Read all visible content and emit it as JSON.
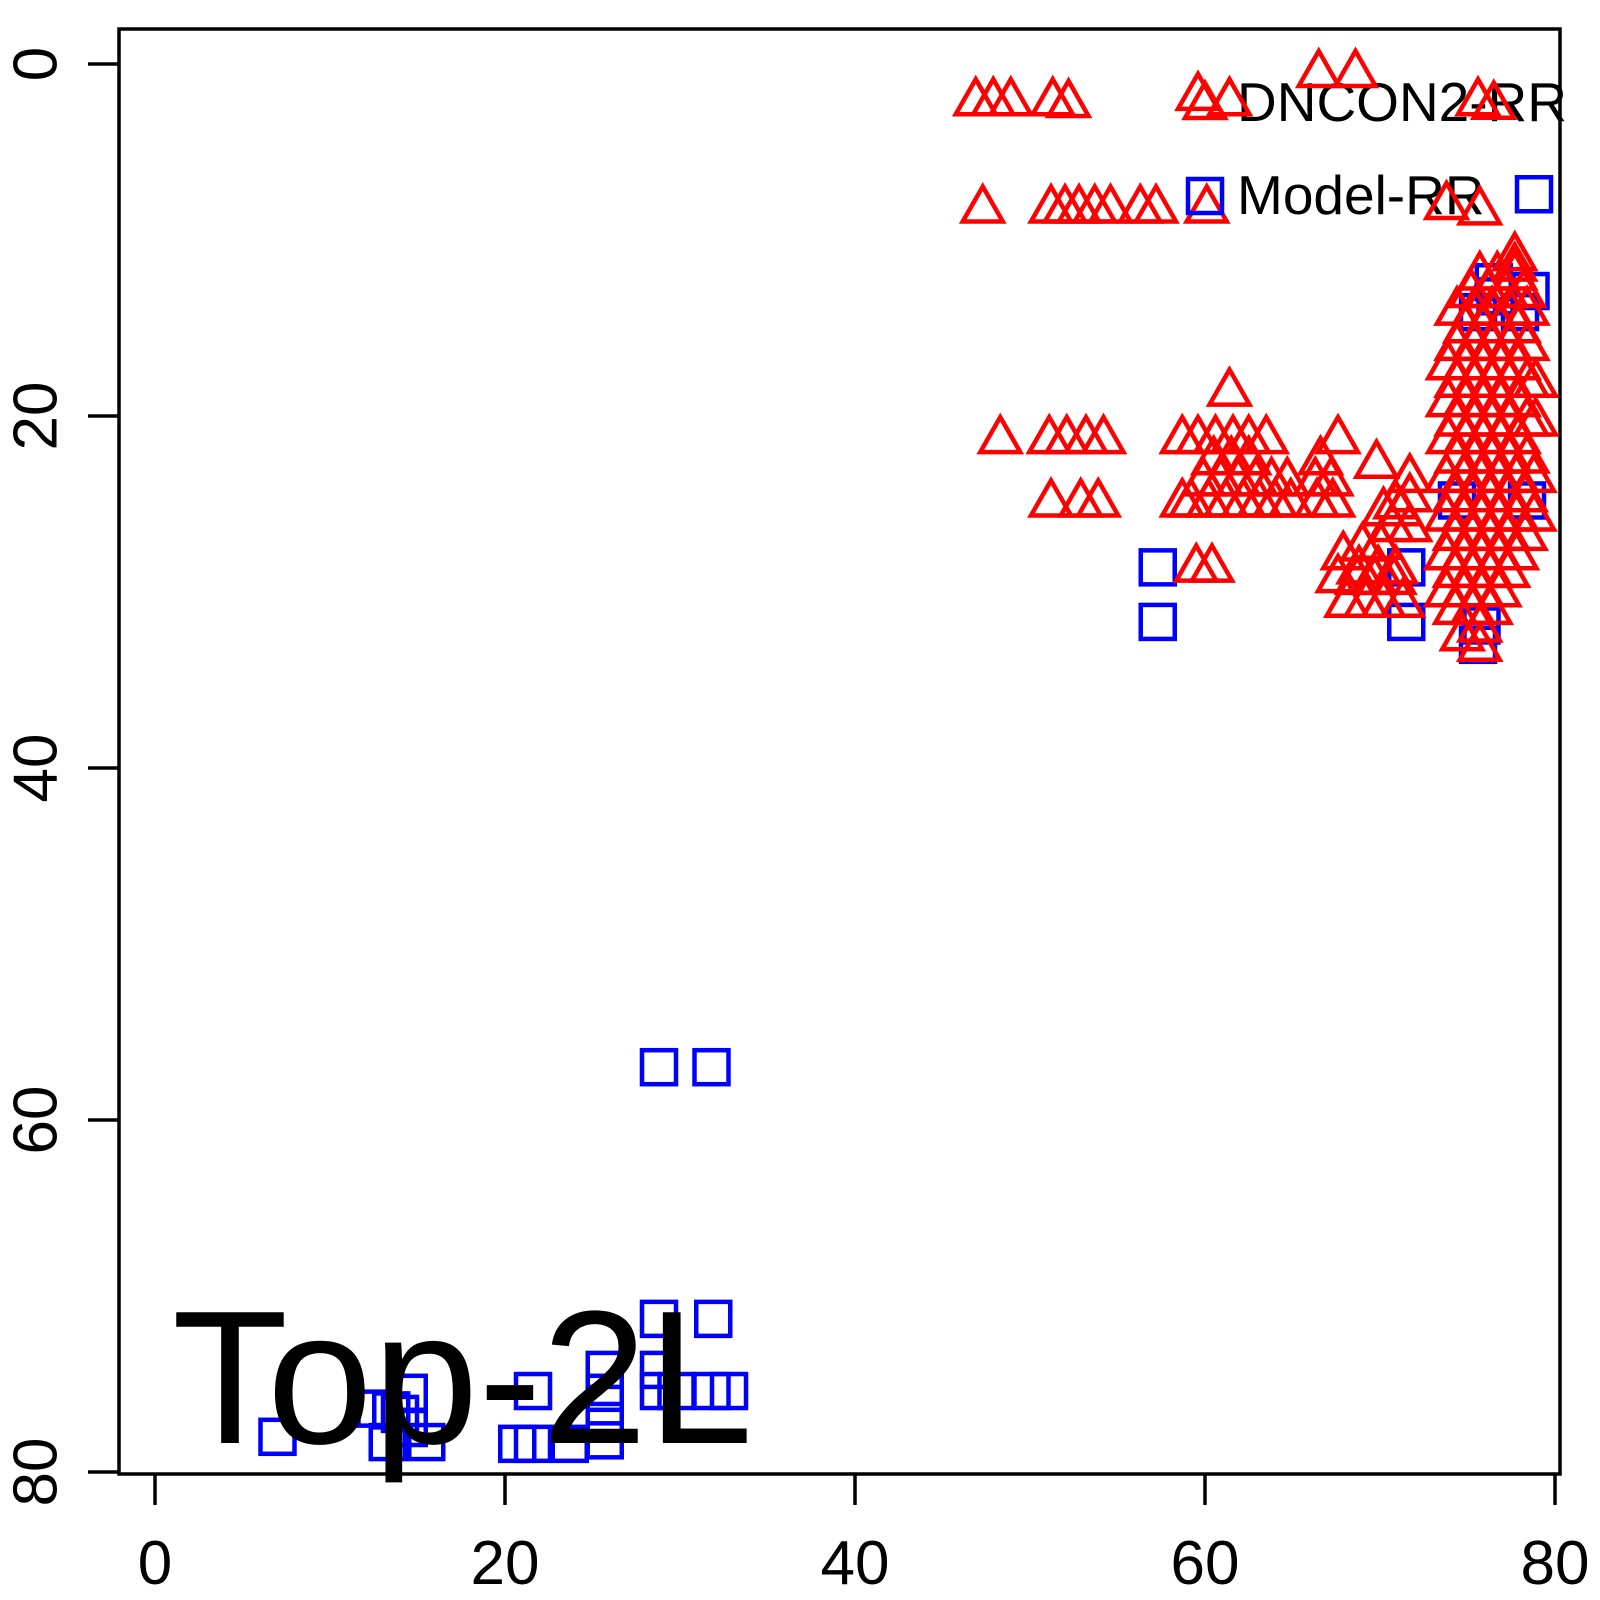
{
  "figure": {
    "background": "#ffffff",
    "border_color": "#000000"
  },
  "chart_data": {
    "type": "scatter",
    "title": "",
    "xlabel": "",
    "ylabel": "",
    "annotation": {
      "text": "Top-2L"
    },
    "axes": {
      "x": {
        "ticks": [
          "0",
          "20",
          "40",
          "60",
          "80"
        ],
        "tick_values": [
          0,
          20,
          40,
          60,
          80
        ],
        "range": [
          -2,
          81
        ]
      },
      "y": {
        "ticks": [
          "0",
          "20",
          "40",
          "60",
          "80"
        ],
        "tick_values": [
          0,
          20,
          40,
          60,
          80
        ],
        "range": [
          -2,
          81
        ],
        "reversed": true
      }
    },
    "grid": false,
    "legend": {
      "position": "top-right",
      "entries": [
        {
          "label": "DNCON2-RR",
          "marker": "triangle",
          "color": "#ff0000"
        },
        {
          "label": "Model-RR",
          "marker": "square",
          "color": "#0000ff"
        }
      ]
    },
    "series": [
      {
        "name": "Model-RR",
        "marker": "square",
        "color": "#0000ff",
        "points": [
          [
            78.8,
            7.4
          ],
          [
            76.5,
            12.4
          ],
          [
            78.6,
            12.9
          ],
          [
            76.6,
            13.2
          ],
          [
            75.6,
            14.1
          ],
          [
            78.0,
            14.1
          ],
          [
            74.4,
            24.8
          ],
          [
            78.4,
            24.8
          ],
          [
            75.8,
            31.9
          ],
          [
            75.6,
            33.0
          ],
          [
            57.3,
            28.6
          ],
          [
            57.3,
            31.7
          ],
          [
            71.5,
            28.6
          ],
          [
            71.5,
            31.7
          ],
          [
            28.8,
            57.0
          ],
          [
            31.8,
            57.0
          ],
          [
            28.8,
            71.3
          ],
          [
            31.9,
            71.3
          ],
          [
            7.0,
            78.0
          ],
          [
            12.6,
            76.4
          ],
          [
            13.5,
            76.5
          ],
          [
            14.0,
            76.7
          ],
          [
            14.5,
            75.5
          ],
          [
            14.5,
            77.5
          ],
          [
            13.3,
            78.3
          ],
          [
            15.5,
            78.3
          ],
          [
            20.7,
            78.4
          ],
          [
            21.6,
            75.4
          ],
          [
            21.6,
            78.4
          ],
          [
            23.7,
            78.4
          ],
          [
            25.7,
            74.2
          ],
          [
            25.7,
            75.5
          ],
          [
            25.7,
            77.1
          ],
          [
            25.7,
            78.2
          ],
          [
            28.8,
            74.2
          ],
          [
            28.8,
            75.4
          ],
          [
            29.8,
            75.4
          ],
          [
            31.8,
            75.4
          ],
          [
            32.8,
            75.4
          ]
        ]
      },
      {
        "name": "DNCON2-RR",
        "marker": "triangle",
        "color": "#ff0000",
        "points": [
          [
            66.5,
            0.4
          ],
          [
            68.6,
            0.4
          ],
          [
            46.9,
            2.0
          ],
          [
            47.9,
            2.0
          ],
          [
            48.9,
            2.0
          ],
          [
            51.3,
            2.0
          ],
          [
            52.2,
            2.1
          ],
          [
            59.6,
            1.7
          ],
          [
            61.4,
            2.0
          ],
          [
            75.6,
            2.0
          ],
          [
            76.5,
            2.2
          ],
          [
            47.3,
            8.1
          ],
          [
            51.2,
            8.1
          ],
          [
            52.0,
            8.1
          ],
          [
            52.8,
            8.1
          ],
          [
            53.7,
            8.1
          ],
          [
            54.6,
            8.1
          ],
          [
            56.3,
            8.1
          ],
          [
            57.2,
            8.1
          ],
          [
            60.1,
            8.1
          ],
          [
            73.8,
            7.9
          ],
          [
            75.7,
            8.2
          ],
          [
            61.4,
            18.5
          ],
          [
            48.3,
            21.2
          ],
          [
            51.1,
            21.2
          ],
          [
            52.1,
            21.2
          ],
          [
            53.2,
            21.2
          ],
          [
            54.2,
            21.2
          ],
          [
            58.7,
            21.2
          ],
          [
            59.6,
            21.2
          ],
          [
            60.6,
            21.2
          ],
          [
            61.6,
            21.2
          ],
          [
            62.5,
            21.2
          ],
          [
            63.5,
            21.2
          ],
          [
            67.6,
            21.2
          ],
          [
            60.5,
            22.4
          ],
          [
            61.5,
            22.4
          ],
          [
            62.5,
            22.4
          ],
          [
            66.6,
            22.4
          ],
          [
            69.8,
            22.6
          ],
          [
            59.9,
            23.6
          ],
          [
            60.9,
            23.6
          ],
          [
            61.9,
            23.6
          ],
          [
            62.9,
            23.6
          ],
          [
            63.8,
            23.6
          ],
          [
            64.7,
            23.6
          ],
          [
            66.3,
            23.6
          ],
          [
            67.2,
            23.6
          ],
          [
            51.2,
            24.8
          ],
          [
            52.9,
            24.8
          ],
          [
            53.9,
            24.8
          ],
          [
            58.7,
            24.8
          ],
          [
            59.2,
            24.8
          ],
          [
            60.2,
            24.8
          ],
          [
            61.2,
            24.8
          ],
          [
            62.2,
            24.8
          ],
          [
            63.1,
            24.8
          ],
          [
            64.0,
            24.8
          ],
          [
            64.9,
            24.8
          ],
          [
            66.4,
            24.8
          ],
          [
            67.3,
            24.8
          ],
          [
            59.5,
            28.5
          ],
          [
            60.4,
            28.5
          ],
          [
            71.7,
            23.4
          ],
          [
            71.7,
            24.5
          ],
          [
            70.9,
            24.9
          ],
          [
            70.2,
            25.3
          ],
          [
            71.2,
            25.3
          ],
          [
            70.7,
            26.2
          ],
          [
            71.7,
            26.2
          ],
          [
            69.0,
            27.3
          ],
          [
            70.0,
            27.2
          ],
          [
            67.9,
            27.8
          ],
          [
            68.8,
            28.6
          ],
          [
            69.9,
            28.6
          ],
          [
            70.9,
            28.6
          ],
          [
            67.6,
            29.1
          ],
          [
            68.7,
            29.2
          ],
          [
            69.7,
            29.2
          ],
          [
            70.8,
            29.2
          ],
          [
            68.1,
            30.5
          ],
          [
            69.2,
            30.5
          ],
          [
            70.2,
            30.5
          ],
          [
            71.3,
            30.5
          ],
          [
            77.7,
            10.8
          ],
          [
            77.7,
            11.4
          ],
          [
            75.7,
            11.9
          ],
          [
            76.7,
            11.9
          ],
          [
            77.7,
            11.9
          ],
          [
            75.2,
            12.9
          ],
          [
            76.2,
            12.9
          ],
          [
            77.2,
            12.9
          ],
          [
            78.2,
            12.9
          ],
          [
            74.4,
            13.9
          ],
          [
            75.4,
            13.9
          ],
          [
            76.4,
            13.9
          ],
          [
            77.4,
            13.9
          ],
          [
            78.4,
            13.9
          ],
          [
            74.9,
            14.9
          ],
          [
            75.9,
            14.9
          ],
          [
            76.9,
            14.9
          ],
          [
            77.9,
            14.9
          ],
          [
            74.4,
            15.9
          ],
          [
            75.4,
            15.9
          ],
          [
            76.4,
            15.9
          ],
          [
            77.4,
            15.9
          ],
          [
            78.4,
            15.9
          ],
          [
            73.9,
            17.0
          ],
          [
            74.9,
            17.0
          ],
          [
            75.9,
            17.0
          ],
          [
            76.9,
            17.0
          ],
          [
            77.9,
            17.0
          ],
          [
            74.4,
            18.0
          ],
          [
            75.4,
            18.0
          ],
          [
            76.4,
            18.0
          ],
          [
            77.4,
            18.0
          ],
          [
            78.4,
            18.0
          ],
          [
            78.9,
            18.0
          ],
          [
            73.9,
            19.1
          ],
          [
            74.9,
            19.1
          ],
          [
            75.9,
            19.1
          ],
          [
            76.9,
            19.1
          ],
          [
            77.9,
            19.1
          ],
          [
            74.4,
            20.2
          ],
          [
            75.4,
            20.2
          ],
          [
            76.4,
            20.2
          ],
          [
            77.4,
            20.2
          ],
          [
            78.4,
            20.2
          ],
          [
            78.9,
            20.2
          ],
          [
            73.9,
            21.2
          ],
          [
            74.9,
            21.2
          ],
          [
            75.9,
            21.2
          ],
          [
            76.9,
            21.2
          ],
          [
            77.9,
            21.2
          ],
          [
            74.4,
            22.3
          ],
          [
            75.4,
            22.3
          ],
          [
            76.4,
            22.3
          ],
          [
            77.4,
            22.3
          ],
          [
            78.4,
            22.3
          ],
          [
            73.8,
            23.4
          ],
          [
            74.8,
            23.4
          ],
          [
            75.8,
            23.4
          ],
          [
            76.8,
            23.4
          ],
          [
            77.8,
            23.4
          ],
          [
            78.8,
            23.4
          ],
          [
            74.3,
            24.5
          ],
          [
            75.3,
            24.5
          ],
          [
            76.3,
            24.5
          ],
          [
            77.3,
            24.5
          ],
          [
            78.3,
            24.5
          ],
          [
            73.8,
            25.6
          ],
          [
            74.8,
            25.6
          ],
          [
            75.8,
            25.6
          ],
          [
            76.8,
            25.6
          ],
          [
            77.8,
            25.6
          ],
          [
            78.8,
            25.6
          ],
          [
            74.3,
            26.7
          ],
          [
            75.3,
            26.7
          ],
          [
            76.3,
            26.7
          ],
          [
            77.3,
            26.7
          ],
          [
            78.3,
            26.7
          ],
          [
            73.8,
            27.8
          ],
          [
            74.8,
            27.8
          ],
          [
            75.8,
            27.8
          ],
          [
            76.8,
            27.8
          ],
          [
            77.8,
            27.8
          ],
          [
            74.3,
            28.8
          ],
          [
            75.3,
            28.8
          ],
          [
            76.3,
            28.8
          ],
          [
            77.3,
            28.8
          ],
          [
            73.8,
            29.9
          ],
          [
            74.8,
            29.9
          ],
          [
            75.8,
            29.9
          ],
          [
            76.8,
            29.9
          ],
          [
            74.3,
            30.9
          ],
          [
            75.3,
            30.9
          ],
          [
            76.3,
            30.9
          ],
          [
            75.7,
            31.9
          ],
          [
            74.7,
            32.4
          ],
          [
            75.7,
            33.0
          ]
        ]
      }
    ]
  }
}
